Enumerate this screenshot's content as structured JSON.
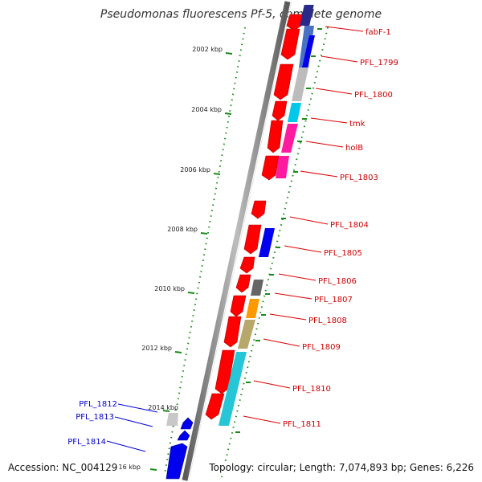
{
  "title": "Pseudomonas fluorescens Pf-5, complete genome",
  "accession": "Accession: NC_004129",
  "topology": "Topology: circular; Length: 7,074,893 bp; Genes: 6,226",
  "axis_labels": [
    "2002 kbp",
    "2004 kbp",
    "2006 kbp",
    "2008 kbp",
    "2010 kbp",
    "2012 kbp",
    "2014 kbp",
    "16 kbp"
  ],
  "right_genes": [
    "fabF-1",
    "PFL_1799",
    "PFL_1800",
    "tmk",
    "holB",
    "PFL_1803",
    "PFL_1804",
    "PFL_1805",
    "PFL_1806",
    "PFL_1807",
    "PFL_1808",
    "PFL_1809",
    "PFL_1810",
    "PFL_1811"
  ],
  "left_genes": [
    "PFL_1812",
    "PFL_1813",
    "PFL_1814"
  ],
  "colors": {
    "cds": "#ff0000",
    "label_right": "#cc0000",
    "label_left": "#0000cc",
    "tick": "#007700",
    "backbone": "#8a8a8a"
  }
}
